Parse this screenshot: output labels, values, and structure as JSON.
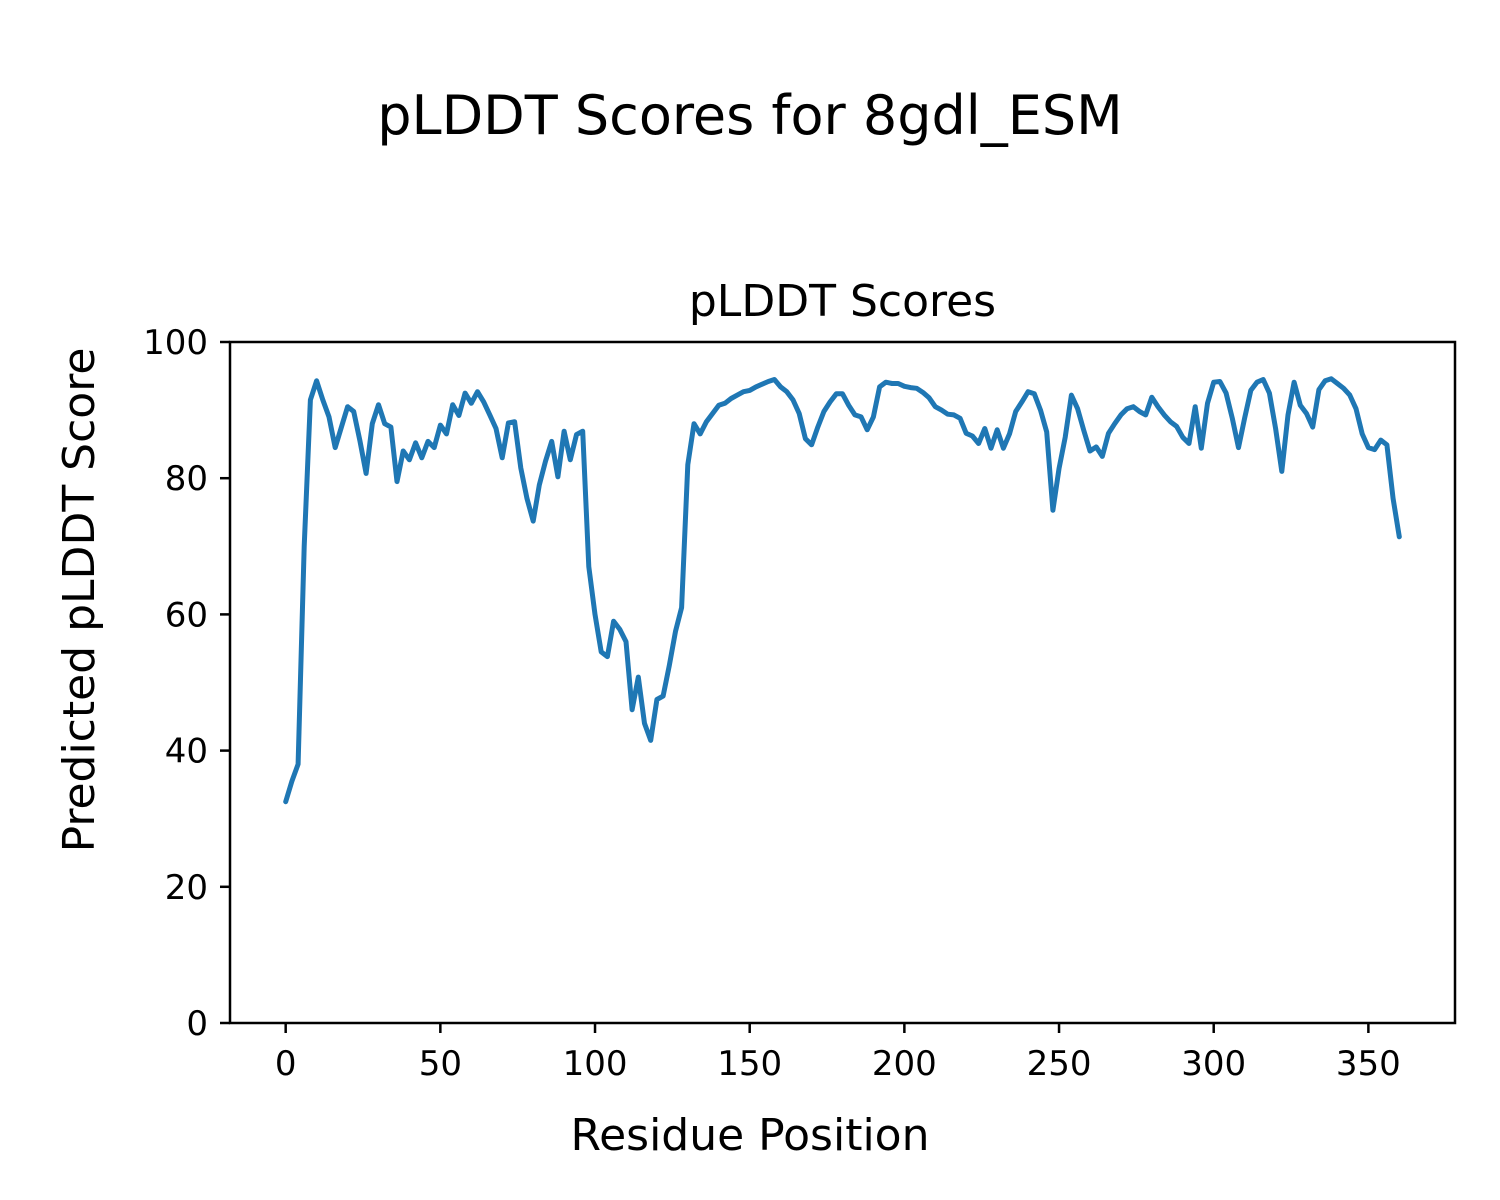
{
  "figure": {
    "suptitle": "pLDDT Scores for 8gdl_ESM",
    "axes_title": "pLDDT Scores",
    "xlabel": "Residue Position",
    "ylabel": "Predicted pLDDT Score"
  },
  "chart_data": {
    "type": "line",
    "title": "pLDDT Scores",
    "suptitle": "pLDDT Scores for 8gdl_ESM",
    "xlabel": "Residue Position",
    "ylabel": "Predicted pLDDT Score",
    "series_name": "pLDDT per residue",
    "line_color": "#1f77b4",
    "line_width": 5,
    "background_color": "#ffffff",
    "spine_color": "#000000",
    "grid": false,
    "legend": "none",
    "xlim": [
      -18,
      378
    ],
    "ylim": [
      0,
      100
    ],
    "x_ticks": [
      0,
      50,
      100,
      150,
      200,
      250,
      300,
      350
    ],
    "y_ticks": [
      0,
      20,
      40,
      60,
      80,
      100
    ],
    "x": [
      0,
      2,
      4,
      6,
      8,
      10,
      12,
      14,
      16,
      18,
      20,
      22,
      24,
      26,
      28,
      30,
      32,
      34,
      36,
      38,
      40,
      42,
      44,
      46,
      48,
      50,
      52,
      54,
      56,
      58,
      60,
      62,
      64,
      66,
      68,
      70,
      72,
      74,
      76,
      78,
      80,
      82,
      84,
      86,
      88,
      90,
      92,
      94,
      96,
      98,
      100,
      102,
      104,
      106,
      108,
      110,
      112,
      114,
      116,
      118,
      120,
      122,
      124,
      126,
      128,
      130,
      132,
      134,
      136,
      138,
      140,
      142,
      144,
      146,
      148,
      150,
      152,
      154,
      156,
      158,
      160,
      162,
      164,
      166,
      168,
      170,
      172,
      174,
      176,
      178,
      180,
      182,
      184,
      186,
      188,
      190,
      192,
      194,
      196,
      198,
      200,
      202,
      204,
      206,
      208,
      210,
      212,
      214,
      216,
      218,
      220,
      222,
      224,
      226,
      228,
      230,
      232,
      234,
      236,
      238,
      240,
      242,
      244,
      246,
      248,
      250,
      252,
      254,
      256,
      258,
      260,
      262,
      264,
      266,
      268,
      270,
      272,
      274,
      276,
      278,
      280,
      282,
      284,
      286,
      288,
      290,
      292,
      294,
      296,
      298,
      300,
      302,
      304,
      306,
      308,
      310,
      312,
      314,
      316,
      318,
      320,
      322,
      324,
      326,
      328,
      330,
      332,
      334,
      336,
      338,
      340,
      342,
      344,
      346,
      348,
      350,
      352,
      354,
      356,
      358,
      360
    ],
    "y": [
      32.5,
      35.5,
      38,
      70,
      91.5,
      94.3,
      91.5,
      89,
      84.5,
      87.5,
      90.5,
      89.8,
      85.5,
      80.7,
      88,
      90.8,
      88,
      87.5,
      79.5,
      84,
      82.7,
      85.2,
      83,
      85.4,
      84.5,
      87.8,
      86.5,
      90.8,
      89.2,
      92.5,
      91,
      92.7,
      91.2,
      89.3,
      87.3,
      83,
      88.1,
      88.3,
      81.5,
      77,
      73.7,
      79,
      82.5,
      85.4,
      80.2,
      86.9,
      82.7,
      86.4,
      86.9,
      67,
      60,
      54.5,
      53.8,
      59,
      57.8,
      56,
      46,
      50.8,
      44,
      41.5,
      47.5,
      48,
      52.5,
      57.5,
      61,
      82,
      88,
      86.5,
      88.3,
      89.5,
      90.7,
      91,
      91.7,
      92.2,
      92.7,
      92.9,
      93.4,
      93.8,
      94.2,
      94.5,
      93.4,
      92.7,
      91.5,
      89.5,
      85.8,
      84.9,
      87.5,
      89.8,
      91.2,
      92.4,
      92.4,
      90.7,
      89.3,
      89,
      87.1,
      89,
      93.4,
      94.1,
      93.9,
      93.9,
      93.5,
      93.3,
      93.2,
      92.6,
      91.8,
      90.5,
      90,
      89.4,
      89.3,
      88.8,
      86.6,
      86.2,
      85.1,
      87.3,
      84.4,
      87.1,
      84.4,
      86.5,
      89.8,
      91.2,
      92.7,
      92.4,
      90,
      86.8,
      75.3,
      81.4,
      86,
      92.2,
      90.2,
      87,
      84,
      84.6,
      83.2,
      86.6,
      88,
      89.3,
      90.2,
      90.5,
      89.8,
      89.3,
      91.9,
      90.5,
      89.3,
      88.3,
      87.6,
      86,
      85.1,
      90.5,
      84.4,
      91,
      94.1,
      94.2,
      92.5,
      88.8,
      84.5,
      88.8,
      92.9,
      94.1,
      94.5,
      92.5,
      87.3,
      81,
      89.3,
      94.1,
      90.7,
      89.5,
      87.5,
      93,
      94.3,
      94.6,
      93.9,
      93.2,
      92.2,
      90.2,
      86.5,
      84.5,
      84.2,
      85.6,
      84.9,
      77,
      71.4
    ]
  }
}
